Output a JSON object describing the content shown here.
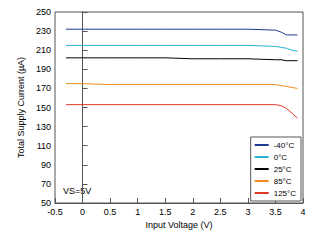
{
  "chart_data": {
    "type": "line",
    "x_label": "Input Voltage (V)",
    "y_label": "Total Supply Current (µA)",
    "annotations": [
      "VS=5V"
    ],
    "x": [
      -0.3,
      0,
      0.5,
      1,
      1.5,
      2,
      2.5,
      3,
      3.5,
      3.6,
      3.7,
      3.8,
      3.9
    ],
    "series": [
      {
        "name": "-40°C",
        "color": "#1f3a93",
        "values": [
          232,
          232,
          232,
          232,
          232,
          232,
          232,
          232,
          231,
          229,
          226,
          226,
          226
        ]
      },
      {
        "name": "0°C",
        "color": "#2bb3d6",
        "values": [
          215,
          215,
          215,
          215,
          215,
          215,
          215,
          215,
          214,
          213,
          212,
          210,
          209
        ]
      },
      {
        "name": "25°C",
        "color": "#000000",
        "values": [
          202,
          202,
          202,
          202,
          202,
          201,
          201,
          201,
          200,
          200,
          199,
          199,
          199
        ]
      },
      {
        "name": "85°C",
        "color": "#f08c1e",
        "values": [
          175,
          175,
          174,
          174,
          174,
          174,
          174,
          174,
          174,
          173,
          172,
          171,
          170
        ]
      },
      {
        "name": "125°C",
        "color": "#e0392b",
        "values": [
          153,
          153,
          153,
          153,
          153,
          153,
          153,
          153,
          153,
          152,
          149,
          144,
          139
        ]
      }
    ],
    "xlim": [
      -0.5,
      4
    ],
    "xticks": [
      -0.5,
      0,
      0.5,
      1,
      1.5,
      2,
      2.5,
      3,
      3.5,
      4
    ],
    "ylim": [
      50,
      250
    ],
    "yticks": [
      50,
      70,
      90,
      110,
      130,
      150,
      170,
      190,
      210,
      230,
      250
    ],
    "grid": false,
    "legend": "lower right"
  }
}
